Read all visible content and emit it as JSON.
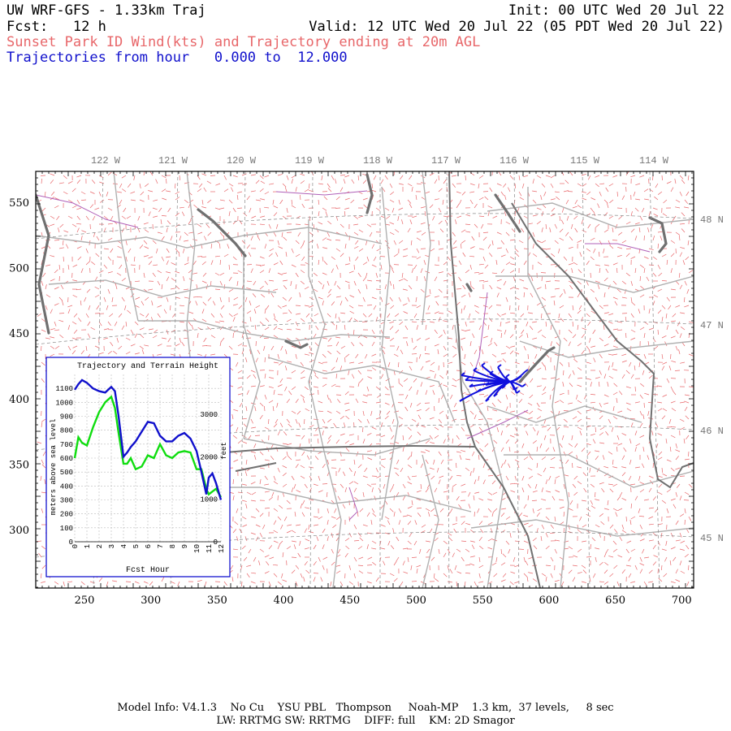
{
  "header": {
    "line1_left": "UW WRF-GFS - 1.33km Traj",
    "line1_right": "Init: 00 UTC Wed 20 Jul 22",
    "line2_left": "Fcst:   12 h",
    "line2_right": "Valid: 12 UTC Wed 20 Jul 22 (05 PDT Wed 20 Jul 22)",
    "line3": "Sunset Park ID Wind(kts) and Trajectory ending at 20m AGL",
    "line4": "Trajectories from hour   0.000 to  12.000"
  },
  "map": {
    "lon_labels": [
      "122 W",
      "121 W",
      "120 W",
      "119 W",
      "118 W",
      "117 W",
      "116 W",
      "115 W",
      "114 W"
    ],
    "lat_labels": [
      "48 N",
      "47 N",
      "46 N",
      "45 N"
    ],
    "x_ticks": [
      "250",
      "300",
      "350",
      "400",
      "450",
      "500",
      "550",
      "600",
      "650",
      "700"
    ],
    "y_ticks": [
      "550",
      "500",
      "450",
      "400",
      "350",
      "300"
    ],
    "colors": {
      "barbs": "#e8676a",
      "borders_county": "#b0b0b0",
      "borders_state": "#707070",
      "rivers": "#b060b8",
      "trajectory": "#1010dd",
      "lakes": "#707070"
    }
  },
  "inset": {
    "title": "Trajectory and Terrain Height",
    "ylabel_left": "meters above sea level",
    "ylabel_right": "feet",
    "xlabel": "Fcst Hour",
    "left_ticks": [
      "1100",
      "1000",
      "900",
      "800",
      "700",
      "600",
      "500",
      "400",
      "300",
      "200",
      "100",
      "0"
    ],
    "right_ticks": [
      "3000",
      "2000",
      "1000",
      "0"
    ],
    "x_ticks": [
      "0",
      "1",
      "2",
      "3",
      "4",
      "5",
      "6",
      "7",
      "8",
      "9",
      "10",
      "11",
      "12"
    ],
    "chart_data": {
      "type": "line",
      "x_label": "Fcst Hour",
      "y_label": "meters above sea level",
      "ylim": [
        0,
        1200
      ],
      "xlim": [
        0,
        12
      ],
      "series": [
        {
          "color": "#1010cc",
          "x": [
            0,
            0.3,
            0.6,
            1,
            1.5,
            2,
            2.5,
            3,
            3.3,
            3.6,
            4,
            4.3,
            4.6,
            5,
            5.5,
            6,
            6.5,
            7,
            7.5,
            8,
            8.5,
            9,
            9.5,
            10,
            10.4,
            10.8,
            11,
            11.3,
            11.6,
            12
          ],
          "y": [
            1090,
            1130,
            1160,
            1140,
            1100,
            1080,
            1070,
            1110,
            1080,
            900,
            610,
            640,
            680,
            720,
            790,
            860,
            850,
            760,
            720,
            720,
            760,
            780,
            740,
            650,
            500,
            340,
            460,
            490,
            420,
            300
          ]
        },
        {
          "color": "#10dd10",
          "x": [
            0,
            0.3,
            0.6,
            1,
            1.5,
            2,
            2.5,
            3,
            3.3,
            3.6,
            4,
            4.3,
            4.6,
            5,
            5.5,
            6,
            6.5,
            7,
            7.5,
            8,
            8.5,
            9,
            9.5,
            10,
            10.4,
            10.8,
            11,
            11.3,
            11.6,
            12
          ],
          "y": [
            600,
            750,
            710,
            690,
            820,
            930,
            1000,
            1040,
            960,
            780,
            560,
            560,
            600,
            520,
            540,
            620,
            600,
            700,
            620,
            600,
            640,
            650,
            640,
            520,
            520,
            380,
            340,
            360,
            380,
            320
          ]
        }
      ]
    }
  },
  "footer": {
    "line1": "Model Info: V4.1.3    No Cu    YSU PBL   Thompson     Noah-MP    1.3 km,  37 levels,     8 sec",
    "line2": "LW: RRTMG SW: RRTMG    DIFF: full    KM: 2D Smagor"
  }
}
